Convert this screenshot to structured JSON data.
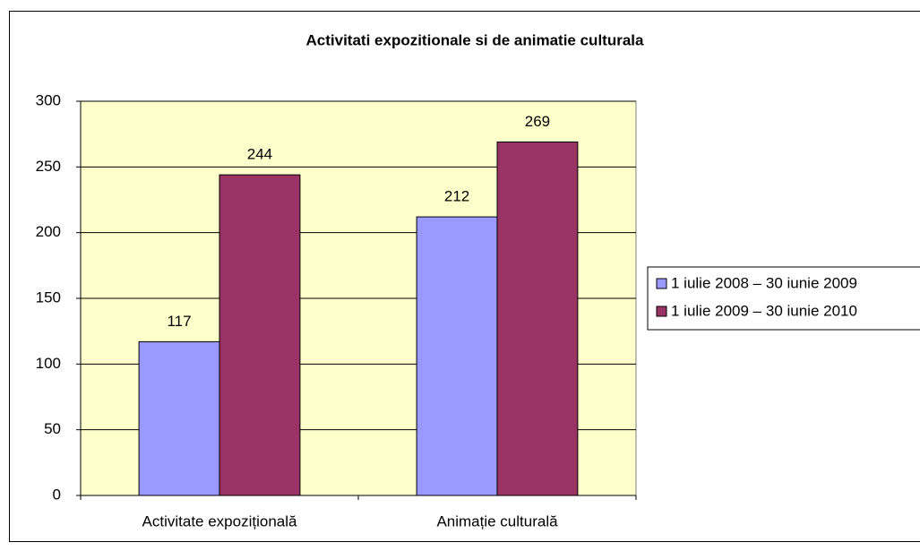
{
  "chart_data": {
    "type": "bar",
    "title": "Activitati expozitionale si de animatie culturala",
    "categories": [
      "Activitate expozițională",
      "Animație culturală"
    ],
    "series": [
      {
        "name": "1 iulie 2008 – 30 iunie 2009",
        "color": "#9999ff",
        "values": [
          117,
          212
        ]
      },
      {
        "name": "1 iulie 2009 – 30 iunie 2010",
        "color": "#993366",
        "values": [
          244,
          269
        ]
      }
    ],
    "ylim": [
      0,
      300
    ],
    "yticks": [
      0,
      50,
      100,
      150,
      200,
      250,
      300
    ],
    "grid": true,
    "legend": "right"
  }
}
